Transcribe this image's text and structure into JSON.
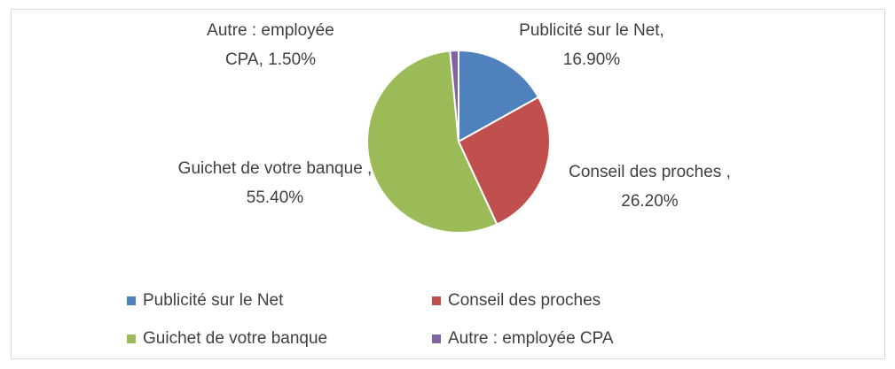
{
  "chart_data": {
    "type": "pie",
    "categories": [
      "Publicité sur le Net",
      "Conseil des proches",
      "Guichet de votre banque",
      "Autre : employée CPA"
    ],
    "values": [
      16.9,
      26.2,
      55.4,
      1.5
    ],
    "value_labels": [
      "Publicité sur le Net, 16.90%",
      "Conseil des proches , 26.20%",
      "Guichet de votre banque , 55.40%",
      "Autre : employée CPA, 1.50%"
    ],
    "colors": [
      "#4f81bd",
      "#c0504d",
      "#9bbb59",
      "#8064a2"
    ],
    "legend": "bottom"
  }
}
